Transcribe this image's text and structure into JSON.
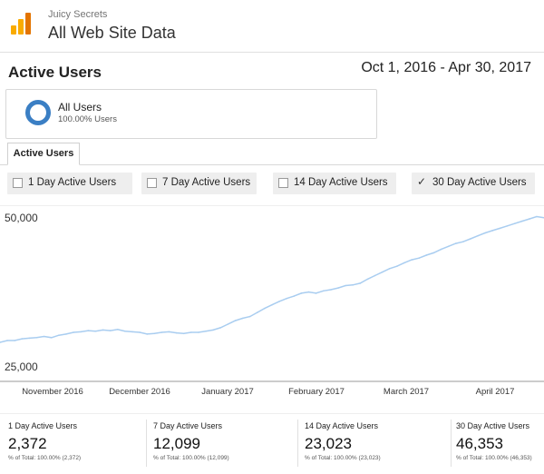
{
  "header": {
    "account": "Juicy Secrets",
    "property": "All Web Site Data",
    "logo_icon": "analytics-logo-icon"
  },
  "report": {
    "title": "Active Users",
    "date_range": "Oct 1, 2016 - Apr 30, 2017"
  },
  "segment": {
    "name": "All Users",
    "percent": "100.00% Users",
    "color": "#3b7fc4"
  },
  "tabs": [
    {
      "label": "Active Users",
      "selected": true
    }
  ],
  "filters": [
    {
      "label": "1 Day Active Users",
      "checked": false
    },
    {
      "label": "7 Day Active Users",
      "checked": false
    },
    {
      "label": "14 Day Active Users",
      "checked": false
    },
    {
      "label": "30 Day Active Users",
      "checked": true
    }
  ],
  "chart_data": {
    "type": "line",
    "series": [
      {
        "name": "30 Day Active Users",
        "color": "#a9cdf0",
        "start": "2016-10-01",
        "values": [
          29200,
          29500,
          29500,
          29800,
          29900,
          30000,
          30200,
          30000,
          30400,
          30600,
          30900,
          31000,
          31200,
          31100,
          31300,
          31200,
          31400,
          31100,
          31000,
          30900,
          30600,
          30700,
          30900,
          31000,
          30800,
          30700,
          30900,
          30900,
          31100,
          31300,
          31700,
          32300,
          32900,
          33300,
          33600,
          34300,
          35000,
          35600,
          36200,
          36700,
          37100,
          37600,
          37800,
          37600,
          38000,
          38200,
          38500,
          38900,
          39000,
          39300,
          40000,
          40600,
          41200,
          41800,
          42200,
          42800,
          43300,
          43600,
          44100,
          44500,
          45100,
          45600,
          46100,
          46400,
          46900,
          47400,
          47900,
          48300,
          48700,
          49100,
          49500,
          49900,
          50300,
          50700,
          50500
        ]
      }
    ],
    "yticks": [
      "50,000",
      "25,000"
    ],
    "ylim": [
      25000,
      50000
    ],
    "xlabels": [
      "November 2016",
      "December 2016",
      "January 2017",
      "February 2017",
      "March 2017",
      "April 2017"
    ],
    "grid": false
  },
  "metrics": [
    {
      "label": "1 Day Active Users",
      "value": "2,372",
      "total": "% of Total: 100.00% (2,372)"
    },
    {
      "label": "7 Day Active Users",
      "value": "12,099",
      "total": "% of Total: 100.00% (12,099)"
    },
    {
      "label": "14 Day Active Users",
      "value": "23,023",
      "total": "% of Total: 100.00% (23,023)"
    },
    {
      "label": "30 Day Active Users",
      "value": "46,353",
      "total": "% of Total: 100.00% (46,353)"
    }
  ]
}
